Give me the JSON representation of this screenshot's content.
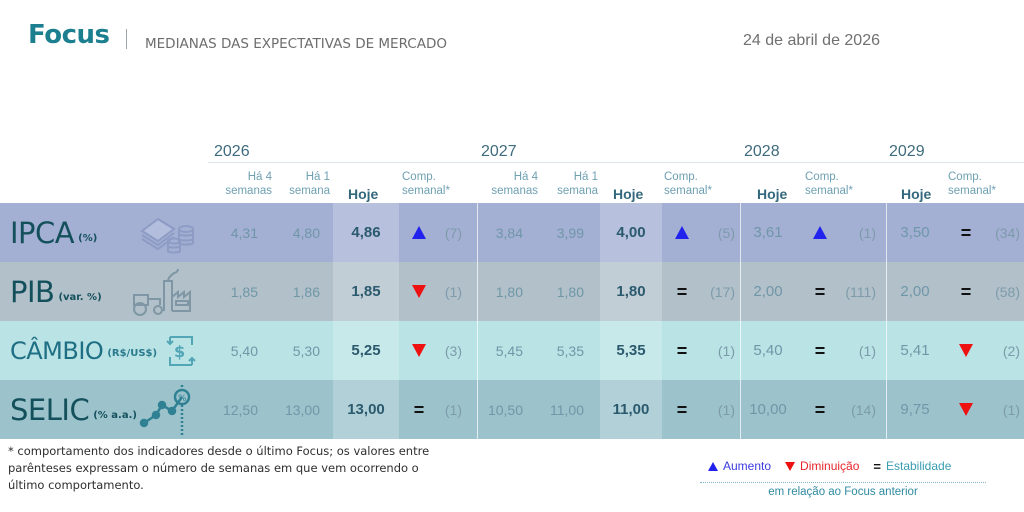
{
  "header": {
    "brand": "Focus",
    "subtitle": "MEDIANAS DAS EXPECTATIVAS DE MERCADO",
    "date": "24 de abril de 2026"
  },
  "years": [
    "2026",
    "2027",
    "2028",
    "2029"
  ],
  "column_headers": {
    "ha4": [
      "Há 4",
      "semanas"
    ],
    "ha1": [
      "Há 1",
      "semana"
    ],
    "hoje": "Hoje",
    "comp": [
      "Comp.",
      "semanal*"
    ]
  },
  "colors": {
    "brand": "#1b7f8f",
    "increase": "#2222ee",
    "decrease": "#ee1111",
    "stability": "#111111",
    "row_ipca": "#a3afd3",
    "row_pib": "#b1c0c9",
    "row_cambio": "#b9e3e5",
    "row_selic": "#9cc3cc"
  },
  "rows": [
    {
      "name": "IPCA",
      "unit": "(%)",
      "icon": "money-coins-icon",
      "y2026": {
        "ha4": "4,31",
        "ha1": "4,80",
        "hoje": "4,86",
        "trend": "up",
        "weeks": "(7)"
      },
      "y2027": {
        "ha4": "3,84",
        "ha1": "3,99",
        "hoje": "4,00",
        "trend": "up",
        "weeks": "(5)"
      },
      "y2028": {
        "hoje": "3,61",
        "trend": "up",
        "weeks": "(1)"
      },
      "y2029": {
        "hoje": "3,50",
        "trend": "eq",
        "weeks": "(34)"
      }
    },
    {
      "name": "PIB",
      "unit": "(var. %)",
      "icon": "tractor-factory-icon",
      "y2026": {
        "ha4": "1,85",
        "ha1": "1,86",
        "hoje": "1,85",
        "trend": "down",
        "weeks": "(1)"
      },
      "y2027": {
        "ha4": "1,80",
        "ha1": "1,80",
        "hoje": "1,80",
        "trend": "eq",
        "weeks": "(17)"
      },
      "y2028": {
        "hoje": "2,00",
        "trend": "eq",
        "weeks": "(111)"
      },
      "y2029": {
        "hoje": "2,00",
        "trend": "eq",
        "weeks": "(58)"
      }
    },
    {
      "name": "CÂMBIO",
      "unit": "(R$/US$)",
      "icon": "currency-exchange-icon",
      "y2026": {
        "ha4": "5,40",
        "ha1": "5,30",
        "hoje": "5,25",
        "trend": "down",
        "weeks": "(3)"
      },
      "y2027": {
        "ha4": "5,45",
        "ha1": "5,35",
        "hoje": "5,35",
        "trend": "eq",
        "weeks": "(1)"
      },
      "y2028": {
        "hoje": "5,40",
        "trend": "eq",
        "weeks": "(1)"
      },
      "y2029": {
        "hoje": "5,41",
        "trend": "down",
        "weeks": "(2)"
      }
    },
    {
      "name": "SELIC",
      "unit": "(% a.a.)",
      "icon": "rate-trend-icon",
      "y2026": {
        "ha4": "12,50",
        "ha1": "13,00",
        "hoje": "13,00",
        "trend": "eq",
        "weeks": "(1)"
      },
      "y2027": {
        "ha4": "10,50",
        "ha1": "11,00",
        "hoje": "11,00",
        "trend": "eq",
        "weeks": "(1)"
      },
      "y2028": {
        "hoje": "10,00",
        "trend": "eq",
        "weeks": "(14)"
      },
      "y2029": {
        "hoje": "9,75",
        "trend": "down",
        "weeks": "(1)"
      }
    }
  ],
  "footnote": "* comportamento dos indicadores desde o último Focus; os valores entre parênteses expressam o número de semanas em que vem ocorrendo o último comportamento.",
  "legend": {
    "increase": "Aumento",
    "decrease": "Diminuição",
    "stability": "Estabilidade",
    "note": "em relação ao Focus anterior"
  }
}
